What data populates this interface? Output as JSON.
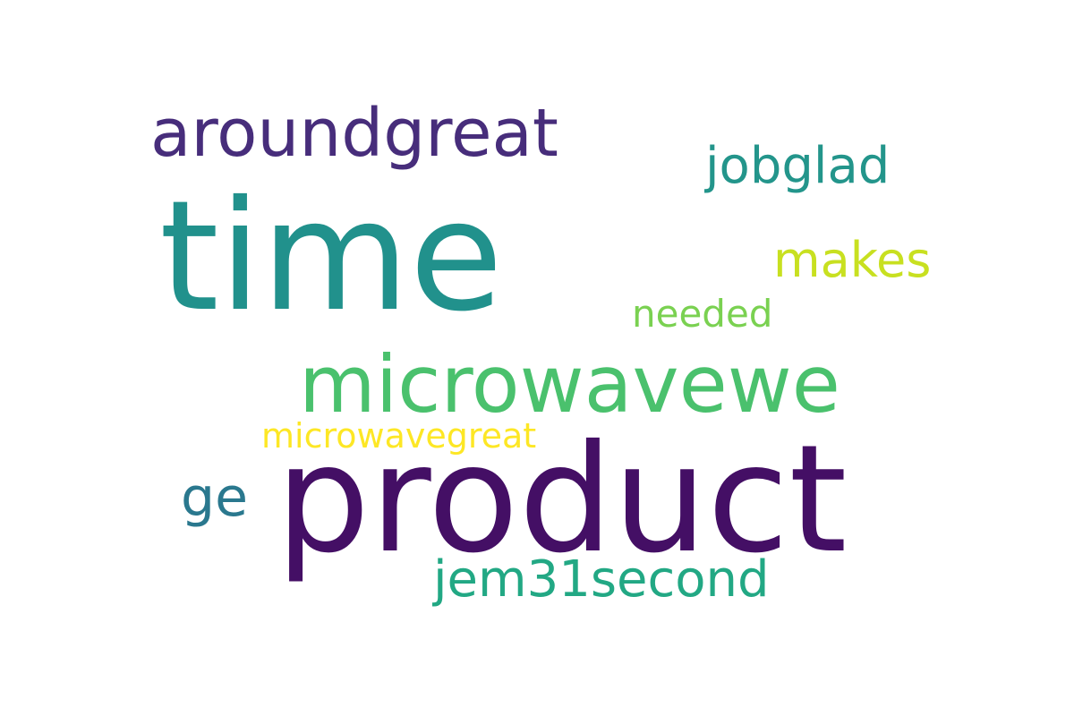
{
  "words": [
    {
      "text": "time",
      "color": "#21918c"
    },
    {
      "text": "product",
      "color": "#440f65"
    },
    {
      "text": "microwavewe",
      "color": "#4ac16d"
    },
    {
      "text": "aroundgreat",
      "color": "#472d7b"
    },
    {
      "text": "jem31second",
      "color": "#22a884"
    },
    {
      "text": "ge",
      "color": "#2a788e"
    },
    {
      "text": "jobglad",
      "color": "#23958b"
    },
    {
      "text": "makes",
      "color": "#c8e020"
    },
    {
      "text": "needed",
      "color": "#7ad151"
    },
    {
      "text": "microwavegreat",
      "color": "#fde725"
    }
  ]
}
